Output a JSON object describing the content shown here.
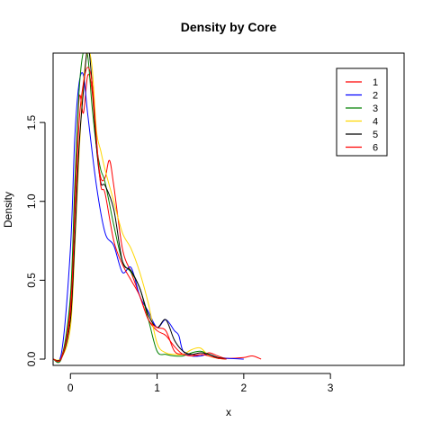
{
  "chart_data": {
    "type": "line",
    "title": "Density by Core",
    "xlabel": "x",
    "ylabel": "Density",
    "xlim": [
      -0.2,
      3.85
    ],
    "ylim": [
      -0.04,
      1.94
    ],
    "x_ticks": [
      0,
      1,
      2,
      3
    ],
    "y_ticks": [
      0.0,
      0.5,
      1.0,
      1.5
    ],
    "x_tick_labels": [
      "0",
      "1",
      "2",
      "3"
    ],
    "y_tick_labels": [
      "0.0",
      "0.5",
      "1.0",
      "1.5"
    ],
    "grid": false,
    "legend_position": "top-right",
    "series": [
      {
        "name": "1",
        "color": "#ff0000",
        "points": [
          [
            -0.2,
            0
          ],
          [
            -0.1,
            0.02
          ],
          [
            0,
            0.35
          ],
          [
            0.05,
            1.0
          ],
          [
            0.1,
            1.65
          ],
          [
            0.15,
            1.56
          ],
          [
            0.2,
            1.8
          ],
          [
            0.25,
            1.7
          ],
          [
            0.3,
            1.35
          ],
          [
            0.35,
            1.15
          ],
          [
            0.4,
            1.15
          ],
          [
            0.45,
            1.26
          ],
          [
            0.5,
            1.1
          ],
          [
            0.6,
            0.7
          ],
          [
            0.7,
            0.55
          ],
          [
            0.8,
            0.4
          ],
          [
            0.9,
            0.25
          ],
          [
            1.0,
            0.18
          ],
          [
            1.1,
            0.15
          ],
          [
            1.2,
            0.08
          ],
          [
            1.3,
            0.03
          ],
          [
            1.4,
            0.03
          ],
          [
            1.5,
            0.02
          ],
          [
            1.6,
            0.04
          ],
          [
            1.7,
            0.02
          ],
          [
            1.8,
            0.005
          ],
          [
            2.0,
            0.01
          ],
          [
            2.1,
            0.02
          ],
          [
            2.2,
            0
          ]
        ]
      },
      {
        "name": "2",
        "color": "#0000ff",
        "points": [
          [
            -0.2,
            0
          ],
          [
            -0.1,
            0.05
          ],
          [
            0,
            0.7
          ],
          [
            0.05,
            1.4
          ],
          [
            0.1,
            1.75
          ],
          [
            0.15,
            1.8
          ],
          [
            0.2,
            1.55
          ],
          [
            0.3,
            1.1
          ],
          [
            0.4,
            0.8
          ],
          [
            0.5,
            0.72
          ],
          [
            0.6,
            0.55
          ],
          [
            0.7,
            0.58
          ],
          [
            0.8,
            0.4
          ],
          [
            0.9,
            0.3
          ],
          [
            1.0,
            0.2
          ],
          [
            1.1,
            0.25
          ],
          [
            1.2,
            0.18
          ],
          [
            1.25,
            0.15
          ],
          [
            1.3,
            0.05
          ],
          [
            1.4,
            0.02
          ],
          [
            1.5,
            0.02
          ],
          [
            1.6,
            0.03
          ],
          [
            1.7,
            0.005
          ],
          [
            1.8,
            0.005
          ],
          [
            2.0,
            0
          ]
        ]
      },
      {
        "name": "3",
        "color": "#008000",
        "points": [
          [
            -0.2,
            0
          ],
          [
            -0.1,
            0.01
          ],
          [
            0,
            0.4
          ],
          [
            0.05,
            1.1
          ],
          [
            0.1,
            1.7
          ],
          [
            0.15,
            1.95
          ],
          [
            0.2,
            1.92
          ],
          [
            0.25,
            1.6
          ],
          [
            0.3,
            1.35
          ],
          [
            0.35,
            1.2
          ],
          [
            0.4,
            1.12
          ],
          [
            0.5,
            0.85
          ],
          [
            0.6,
            0.62
          ],
          [
            0.7,
            0.55
          ],
          [
            0.8,
            0.45
          ],
          [
            0.9,
            0.25
          ],
          [
            1.0,
            0.05
          ],
          [
            1.1,
            0.03
          ],
          [
            1.2,
            0.02
          ],
          [
            1.3,
            0.02
          ],
          [
            1.4,
            0.04
          ],
          [
            1.5,
            0.05
          ],
          [
            1.6,
            0.03
          ],
          [
            1.7,
            0.01
          ],
          [
            1.8,
            0
          ]
        ]
      },
      {
        "name": "4",
        "color": "#ffd700",
        "points": [
          [
            -0.2,
            0
          ],
          [
            -0.1,
            0.01
          ],
          [
            0,
            0.2
          ],
          [
            0.05,
            0.7
          ],
          [
            0.1,
            1.3
          ],
          [
            0.15,
            1.75
          ],
          [
            0.2,
            1.95
          ],
          [
            0.25,
            1.85
          ],
          [
            0.3,
            1.45
          ],
          [
            0.35,
            1.32
          ],
          [
            0.4,
            1.2
          ],
          [
            0.5,
            1.0
          ],
          [
            0.6,
            0.8
          ],
          [
            0.7,
            0.7
          ],
          [
            0.8,
            0.55
          ],
          [
            0.9,
            0.35
          ],
          [
            1.0,
            0.1
          ],
          [
            1.1,
            0.04
          ],
          [
            1.2,
            0.03
          ],
          [
            1.3,
            0.03
          ],
          [
            1.4,
            0.06
          ],
          [
            1.5,
            0.07
          ],
          [
            1.6,
            0.02
          ],
          [
            1.7,
            0.005
          ],
          [
            1.8,
            0
          ]
        ]
      },
      {
        "name": "5",
        "color": "#000000",
        "points": [
          [
            -0.2,
            0
          ],
          [
            -0.1,
            0.01
          ],
          [
            0,
            0.25
          ],
          [
            0.05,
            0.75
          ],
          [
            0.1,
            1.35
          ],
          [
            0.15,
            1.7
          ],
          [
            0.2,
            1.98
          ],
          [
            0.25,
            1.75
          ],
          [
            0.3,
            1.35
          ],
          [
            0.35,
            1.12
          ],
          [
            0.4,
            1.1
          ],
          [
            0.5,
            0.95
          ],
          [
            0.6,
            0.62
          ],
          [
            0.7,
            0.56
          ],
          [
            0.8,
            0.45
          ],
          [
            0.9,
            0.28
          ],
          [
            1.0,
            0.2
          ],
          [
            1.1,
            0.25
          ],
          [
            1.2,
            0.12
          ],
          [
            1.3,
            0.05
          ],
          [
            1.4,
            0.03
          ],
          [
            1.5,
            0.04
          ],
          [
            1.6,
            0.03
          ],
          [
            1.7,
            0.01
          ],
          [
            1.8,
            0
          ]
        ]
      },
      {
        "name": "6",
        "color": "#ff0000",
        "points": [
          [
            -0.2,
            0
          ],
          [
            -0.1,
            0.01
          ],
          [
            0,
            0.3
          ],
          [
            0.05,
            0.9
          ],
          [
            0.1,
            1.5
          ],
          [
            0.15,
            1.75
          ],
          [
            0.2,
            1.85
          ],
          [
            0.25,
            1.75
          ],
          [
            0.3,
            1.4
          ],
          [
            0.35,
            1.1
          ],
          [
            0.4,
            1.05
          ],
          [
            0.5,
            0.75
          ],
          [
            0.6,
            0.6
          ],
          [
            0.7,
            0.5
          ],
          [
            0.8,
            0.4
          ],
          [
            0.9,
            0.25
          ],
          [
            1.0,
            0.2
          ],
          [
            1.1,
            0.18
          ],
          [
            1.2,
            0.05
          ],
          [
            1.3,
            0.03
          ],
          [
            1.4,
            0.02
          ],
          [
            1.5,
            0.03
          ],
          [
            1.6,
            0.02
          ],
          [
            1.7,
            0.005
          ],
          [
            1.8,
            0
          ]
        ]
      }
    ]
  }
}
